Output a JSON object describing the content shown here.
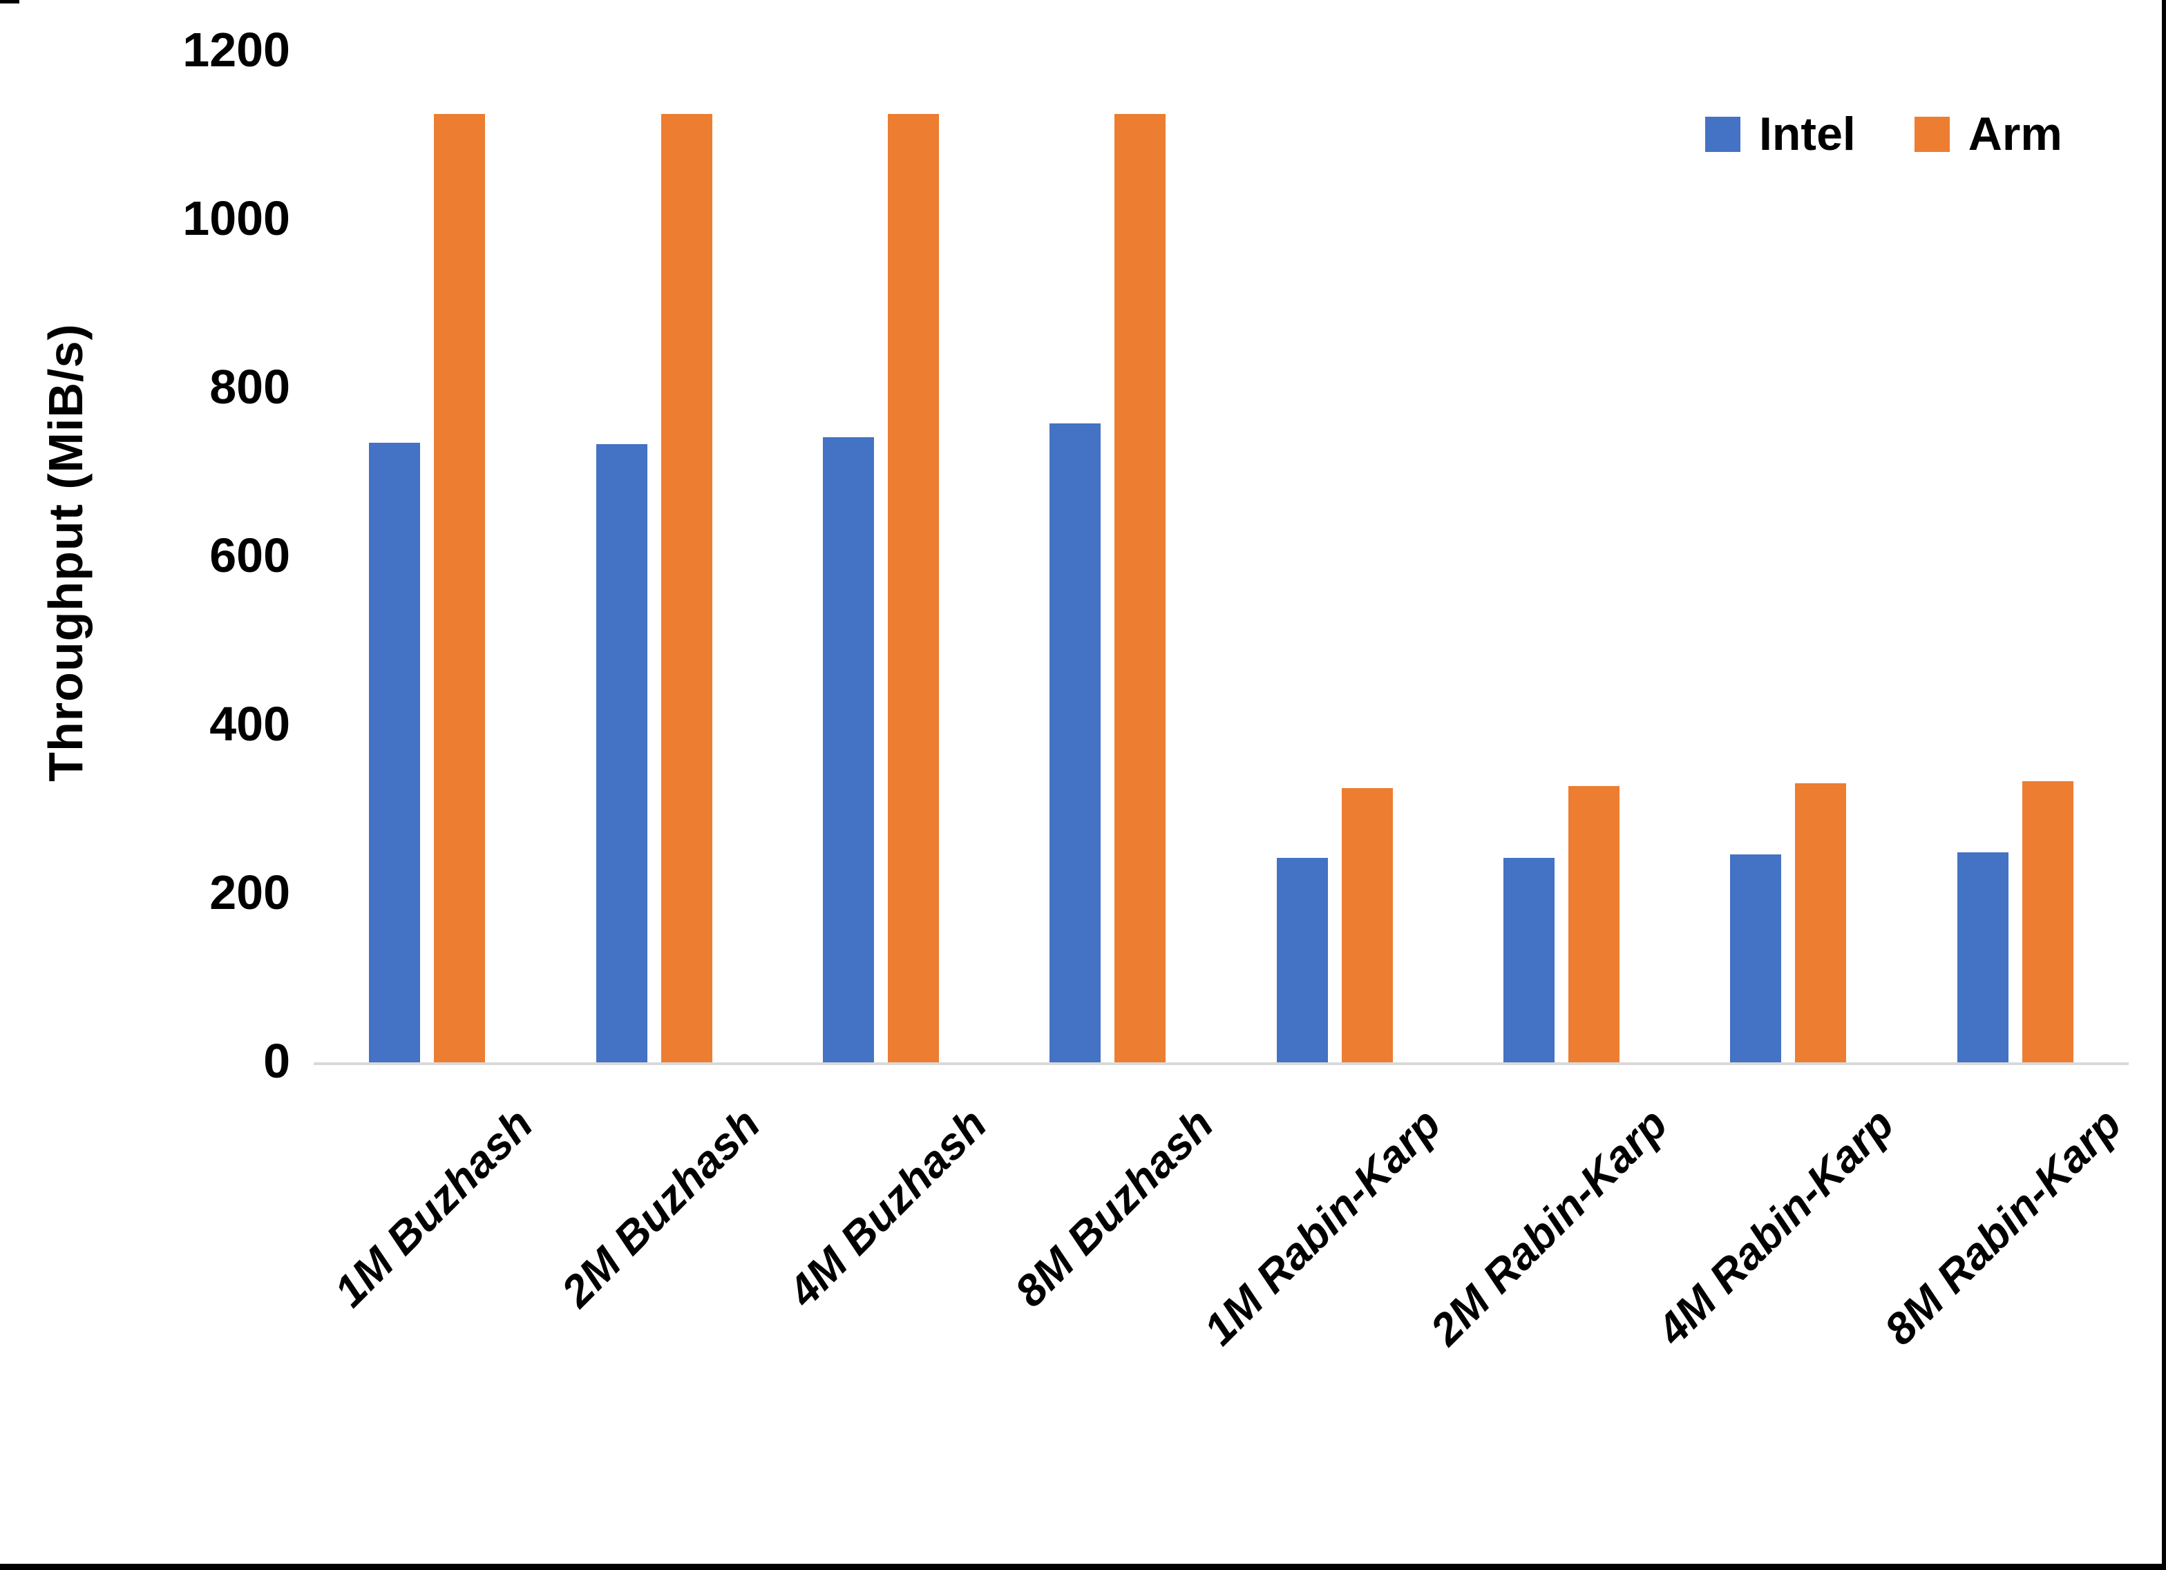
{
  "page": {
    "background": "#ffffff",
    "frame_border_color": "#000000"
  },
  "axis": {
    "y_title": "Throughput (MiB/s)",
    "axis_line_color": "#d9d9d9",
    "text_color": "#000000"
  },
  "legend": {
    "items": [
      {
        "label": "Intel",
        "color": "#4472c4"
      },
      {
        "label": "Arm",
        "color": "#ed7d31"
      }
    ]
  },
  "chart_data": {
    "type": "bar",
    "title": "",
    "xlabel": "",
    "ylabel": "Throughput (MiB/s)",
    "ylim": [
      0,
      1200
    ],
    "yticks": [
      0,
      200,
      400,
      600,
      800,
      1000,
      1200
    ],
    "grid": false,
    "legend_position": "top-right",
    "categories": [
      "1M Buzhash",
      "2M Buzhash",
      "4M Buzhash",
      "8M Buzhash",
      "1M Rabin-Karp",
      "2M Rabin-Karp",
      "4M Rabin-Karp",
      "8M Rabin-Karp"
    ],
    "series": [
      {
        "name": "Intel",
        "color": "#4472c4",
        "values": [
          735,
          734,
          742,
          758,
          243,
          243,
          247,
          249
        ]
      },
      {
        "name": "Arm",
        "color": "#ed7d31",
        "values": [
          1125,
          1125,
          1125,
          1125,
          325,
          328,
          331,
          334
        ]
      }
    ]
  }
}
